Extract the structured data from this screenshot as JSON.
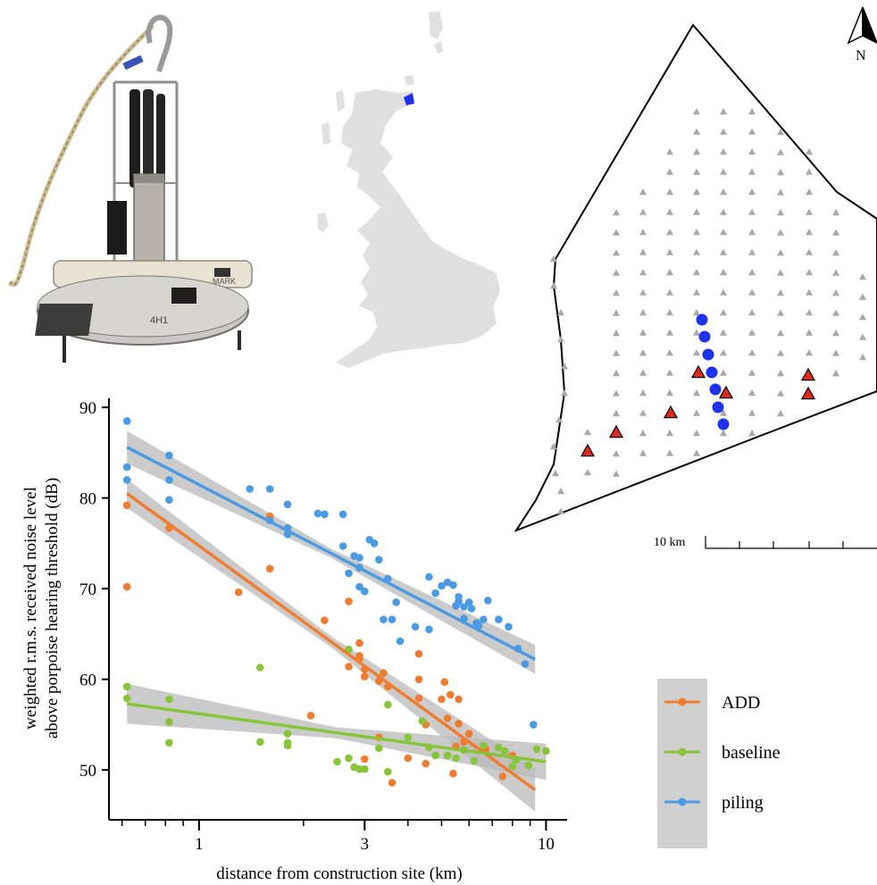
{
  "colors": {
    "ADD": "#ee7d31",
    "baseline": "#88c43a",
    "piling": "#4a9be3",
    "ribbon": "#b9b9b9",
    "turbine": "#a8a8a8",
    "device": "#1f33ee",
    "marker_red": "#e0281e",
    "uk_land": "#e0e0e0"
  },
  "chart_data": {
    "type": "scatter",
    "xlabel": "distance from construction site (km)",
    "ylabel_line1": "weighted r.m.s. received noise level",
    "ylabel_line2": "above porpoise hearing threshold (dB)",
    "x_scale": "log",
    "xlim": [
      0.55,
      11.5
    ],
    "ylim": [
      44.5,
      91
    ],
    "x_ticks": [
      {
        "value": 1,
        "label": "1"
      },
      {
        "value": 3,
        "label": "3"
      },
      {
        "value": 10,
        "label": "10"
      }
    ],
    "y_ticks": [
      {
        "value": 50,
        "label": "50"
      },
      {
        "value": 60,
        "label": "60"
      },
      {
        "value": 70,
        "label": "70"
      },
      {
        "value": 80,
        "label": "80"
      },
      {
        "value": 90,
        "label": "90"
      }
    ],
    "grid": false,
    "legend_position": "right",
    "series": [
      {
        "name": "ADD",
        "fit": {
          "x0": 0.62,
          "y0": 80.5,
          "x1": 9.3,
          "y1": 47.8
        },
        "band": {
          "start": 1.6,
          "mid": 0.6,
          "end": 2.4
        },
        "points": [
          [
            0.62,
            79.2
          ],
          [
            0.62,
            70.2
          ],
          [
            0.82,
            76.7
          ],
          [
            1.3,
            69.6
          ],
          [
            1.6,
            72.2
          ],
          [
            1.6,
            78.0
          ],
          [
            2.1,
            56.0
          ],
          [
            2.3,
            66.5
          ],
          [
            2.7,
            61.4
          ],
          [
            2.7,
            68.6
          ],
          [
            2.9,
            64.0
          ],
          [
            2.9,
            62.6
          ],
          [
            2.9,
            62.3
          ],
          [
            3.0,
            61.1
          ],
          [
            3.0,
            60.3
          ],
          [
            3.0,
            51.2
          ],
          [
            3.3,
            59.8
          ],
          [
            3.3,
            53.6
          ],
          [
            3.4,
            60.7
          ],
          [
            3.5,
            59.2
          ],
          [
            3.6,
            48.6
          ],
          [
            4.0,
            51.3
          ],
          [
            4.3,
            62.8
          ],
          [
            4.3,
            60.0
          ],
          [
            4.3,
            57.9
          ],
          [
            4.5,
            50.7
          ],
          [
            4.5,
            55.0
          ],
          [
            5.0,
            57.8
          ],
          [
            5.1,
            59.7
          ],
          [
            5.2,
            55.7
          ],
          [
            5.3,
            58.3
          ],
          [
            5.4,
            49.6
          ],
          [
            5.5,
            52.6
          ],
          [
            5.6,
            57.8
          ],
          [
            5.6,
            55.1
          ],
          [
            5.8,
            53.1
          ],
          [
            6.0,
            54.0
          ],
          [
            6.7,
            52.3
          ],
          [
            7.5,
            49.3
          ],
          [
            8.0,
            51.6
          ]
        ]
      },
      {
        "name": "baseline",
        "fit": {
          "x0": 0.62,
          "y0": 57.3,
          "x1": 10.0,
          "y1": 50.9
        },
        "band": {
          "start": 2.2,
          "mid": 0.6,
          "end": 2.0
        },
        "points": [
          [
            0.62,
            59.2
          ],
          [
            0.62,
            57.9
          ],
          [
            0.82,
            57.8
          ],
          [
            0.82,
            55.3
          ],
          [
            0.82,
            53.0
          ],
          [
            1.5,
            61.3
          ],
          [
            1.5,
            53.1
          ],
          [
            1.8,
            54.0
          ],
          [
            1.8,
            53.0
          ],
          [
            1.8,
            52.7
          ],
          [
            2.5,
            50.9
          ],
          [
            2.7,
            63.3
          ],
          [
            2.7,
            51.3
          ],
          [
            2.8,
            50.3
          ],
          [
            2.9,
            50.1
          ],
          [
            3.0,
            50.1
          ],
          [
            3.3,
            52.4
          ],
          [
            3.5,
            57.2
          ],
          [
            3.5,
            49.8
          ],
          [
            4.0,
            53.6
          ],
          [
            4.4,
            55.4
          ],
          [
            4.6,
            52.5
          ],
          [
            4.8,
            51.6
          ],
          [
            5.2,
            51.6
          ],
          [
            5.5,
            51.3
          ],
          [
            5.8,
            52.2
          ],
          [
            6.2,
            51.0
          ],
          [
            6.6,
            52.7
          ],
          [
            7.3,
            52.5
          ],
          [
            7.6,
            52.1
          ],
          [
            8.0,
            50.4
          ],
          [
            8.2,
            51.1
          ],
          [
            8.9,
            50.5
          ],
          [
            9.4,
            52.3
          ],
          [
            10.0,
            52.1
          ]
        ]
      },
      {
        "name": "piling",
        "fit": {
          "x0": 0.62,
          "y0": 85.6,
          "x1": 9.3,
          "y1": 62.2
        },
        "band": {
          "start": 1.8,
          "mid": 0.5,
          "end": 1.6
        },
        "points": [
          [
            0.62,
            88.5
          ],
          [
            0.62,
            83.4
          ],
          [
            0.62,
            82.0
          ],
          [
            0.82,
            84.7
          ],
          [
            0.82,
            82.0
          ],
          [
            0.82,
            79.8
          ],
          [
            1.4,
            81.0
          ],
          [
            1.6,
            81.0
          ],
          [
            1.6,
            77.5
          ],
          [
            1.8,
            79.3
          ],
          [
            1.8,
            76.7
          ],
          [
            1.8,
            76.0
          ],
          [
            2.2,
            78.3
          ],
          [
            2.3,
            78.2
          ],
          [
            2.6,
            78.2
          ],
          [
            2.6,
            74.7
          ],
          [
            2.7,
            71.7
          ],
          [
            2.8,
            73.6
          ],
          [
            2.9,
            73.4
          ],
          [
            2.9,
            72.3
          ],
          [
            2.9,
            70.2
          ],
          [
            3.0,
            69.7
          ],
          [
            3.1,
            75.4
          ],
          [
            3.2,
            75.0
          ],
          [
            3.3,
            73.2
          ],
          [
            3.4,
            66.6
          ],
          [
            3.5,
            71.1
          ],
          [
            3.6,
            66.6
          ],
          [
            3.7,
            68.5
          ],
          [
            3.8,
            64.2
          ],
          [
            4.2,
            65.8
          ],
          [
            4.6,
            71.3
          ],
          [
            4.6,
            65.5
          ],
          [
            4.8,
            69.5
          ],
          [
            5.0,
            70.3
          ],
          [
            5.2,
            70.7
          ],
          [
            5.4,
            70.4
          ],
          [
            5.5,
            68.1
          ],
          [
            5.6,
            69.1
          ],
          [
            5.6,
            68.6
          ],
          [
            5.8,
            66.7
          ],
          [
            5.8,
            68.0
          ],
          [
            6.0,
            68.5
          ],
          [
            6.1,
            67.8
          ],
          [
            6.3,
            66.2
          ],
          [
            6.4,
            65.9
          ],
          [
            6.6,
            66.6
          ],
          [
            6.8,
            68.7
          ],
          [
            7.3,
            66.6
          ],
          [
            7.8,
            65.8
          ],
          [
            8.3,
            63.4
          ],
          [
            8.7,
            61.7
          ],
          [
            9.2,
            55.0
          ]
        ]
      }
    ]
  },
  "map": {
    "scale_label": "10 km",
    "north_label": "N"
  },
  "legend": {
    "items": [
      {
        "key": "ADD",
        "label": "ADD"
      },
      {
        "key": "baseline",
        "label": "baseline"
      },
      {
        "key": "piling",
        "label": "piling"
      }
    ]
  },
  "photo": {
    "plate_text": "4H1",
    "device_text": "MARK"
  }
}
